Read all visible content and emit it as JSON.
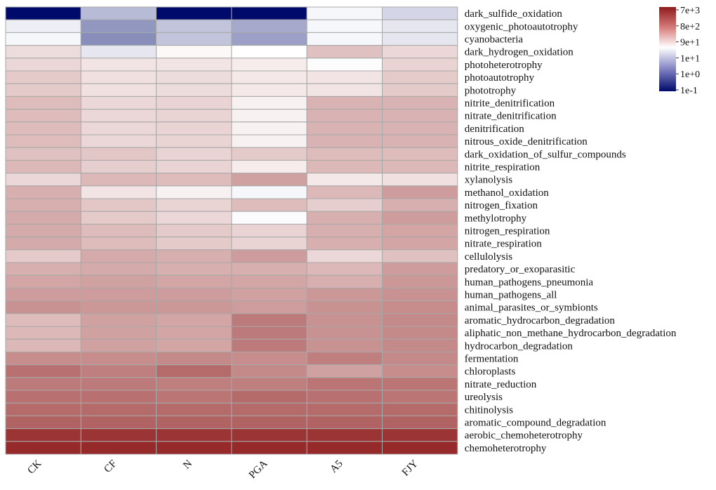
{
  "chart_data": {
    "type": "heatmap",
    "title": "",
    "xlabel": "",
    "ylabel": "",
    "columns": [
      "CK",
      "CF",
      "N",
      "PGA",
      "A5",
      "FJY"
    ],
    "rows": [
      "dark_sulfide_oxidation",
      "oxygenic_photoautotrophy",
      "cyanobacteria",
      "dark_hydrogen_oxidation",
      "photoheterotrophy",
      "photoautotrophy",
      "phototrophy",
      "nitrite_denitrification",
      "nitrate_denitrification",
      "denitrification",
      "nitrous_oxide_denitrification",
      "dark_oxidation_of_sulfur_compounds",
      "nitrite_respiration",
      "xylanolysis",
      "methanol_oxidation",
      "nitrogen_fixation",
      "methylotrophy",
      "nitrogen_respiration",
      "nitrate_respiration",
      "cellulolysis",
      "predatory_or_exoparasitic",
      "human_pathogens_pneumonia",
      "human_pathogens_all",
      "animal_parasites_or_symbionts",
      "aromatic_hydrocarbon_degradation",
      "aliphatic_non_methane_hydrocarbon_degradation",
      "hydrocarbon_degradation",
      "fermentation",
      "chloroplasts",
      "nitrate_reduction",
      "ureolysis",
      "chitinolysis",
      "aromatic_compound_degradation",
      "aerobic_chemoheterotrophy",
      "chemoheterotrophy"
    ],
    "scale": "log10",
    "color_range_log10": [
      -1,
      3.85
    ],
    "values_log10": [
      [
        -1.0,
        0.6,
        -1.0,
        -1.0,
        1.3,
        0.9
      ],
      [
        1.2,
        0.2,
        0.7,
        0.4,
        1.3,
        1.1
      ],
      [
        1.3,
        0.1,
        0.7,
        0.3,
        1.3,
        1.1
      ],
      [
        1.85,
        1.1,
        1.5,
        1.4,
        2.15,
        1.9
      ],
      [
        1.9,
        1.75,
        1.75,
        1.65,
        1.45,
        1.95
      ],
      [
        2.05,
        1.8,
        1.85,
        1.7,
        1.75,
        2.05
      ],
      [
        2.05,
        1.8,
        1.85,
        1.7,
        1.75,
        2.05
      ],
      [
        2.2,
        1.9,
        1.95,
        1.6,
        2.3,
        2.3
      ],
      [
        2.2,
        1.9,
        1.95,
        1.6,
        2.3,
        2.3
      ],
      [
        2.2,
        1.9,
        1.95,
        1.6,
        2.3,
        2.3
      ],
      [
        2.2,
        1.9,
        1.95,
        1.6,
        2.3,
        2.3
      ],
      [
        2.15,
        2.1,
        1.95,
        2.05,
        2.2,
        2.2
      ],
      [
        2.25,
        2.0,
        1.95,
        1.65,
        2.25,
        2.25
      ],
      [
        1.9,
        2.25,
        2.2,
        2.5,
        1.7,
        1.8
      ],
      [
        2.35,
        1.75,
        1.6,
        1.3,
        2.25,
        2.55
      ],
      [
        2.35,
        2.1,
        1.95,
        2.2,
        2.0,
        2.35
      ],
      [
        2.4,
        2.05,
        1.9,
        1.35,
        2.35,
        2.55
      ],
      [
        2.4,
        2.2,
        2.05,
        1.95,
        2.35,
        2.45
      ],
      [
        2.4,
        2.2,
        2.05,
        1.95,
        2.35,
        2.45
      ],
      [
        2.05,
        2.4,
        2.35,
        2.55,
        1.9,
        2.15
      ],
      [
        2.35,
        2.4,
        2.35,
        2.35,
        2.25,
        2.55
      ],
      [
        2.45,
        2.5,
        2.45,
        2.45,
        2.35,
        2.6
      ],
      [
        2.55,
        2.55,
        2.55,
        2.5,
        2.6,
        2.65
      ],
      [
        2.65,
        2.6,
        2.6,
        2.55,
        2.65,
        2.7
      ],
      [
        2.2,
        2.5,
        2.45,
        2.9,
        2.65,
        2.75
      ],
      [
        2.25,
        2.5,
        2.45,
        2.9,
        2.65,
        2.75
      ],
      [
        2.25,
        2.5,
        2.45,
        2.9,
        2.65,
        2.75
      ],
      [
        2.7,
        2.7,
        2.75,
        2.7,
        2.85,
        2.75
      ],
      [
        3.0,
        2.85,
        3.05,
        2.75,
        2.5,
        2.7
      ],
      [
        2.9,
        2.9,
        2.85,
        2.85,
        2.95,
        2.95
      ],
      [
        3.0,
        3.0,
        2.95,
        3.05,
        3.0,
        2.95
      ],
      [
        3.05,
        3.05,
        3.05,
        3.05,
        3.05,
        3.05
      ],
      [
        3.15,
        3.15,
        3.15,
        3.15,
        3.15,
        3.15
      ],
      [
        3.6,
        3.6,
        3.6,
        3.6,
        3.6,
        3.6
      ],
      [
        3.7,
        3.7,
        3.7,
        3.7,
        3.7,
        3.7
      ]
    ],
    "colormap": [
      "#000a6b",
      "#ffffff",
      "#8e1b1b"
    ],
    "legend": {
      "position": "top-right",
      "tick_labels": [
        "7e+3",
        "8e+2",
        "9e+1",
        "1e+1",
        "1e+0",
        "1e-1"
      ]
    }
  }
}
